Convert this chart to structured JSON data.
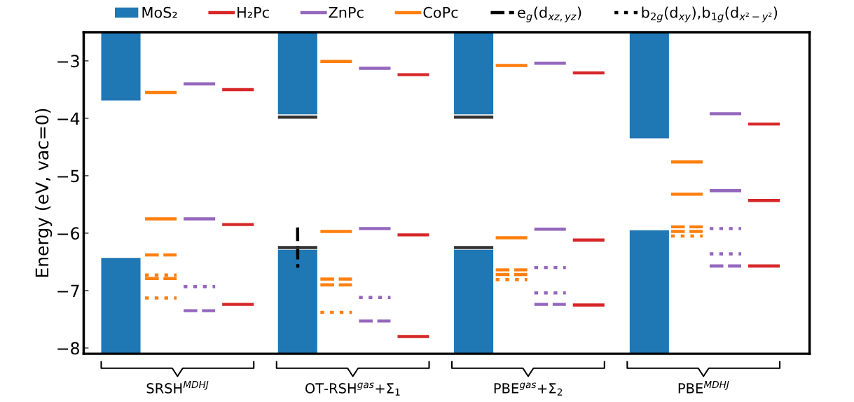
{
  "chart_data": {
    "type": "line",
    "ylabel": "Energy (eV, vac=0)",
    "ylim": [
      -8.1,
      -2.5
    ],
    "yticks": [
      {
        "value": -3,
        "label": "−3"
      },
      {
        "value": -4,
        "label": "−4"
      },
      {
        "value": -5,
        "label": "−5"
      },
      {
        "value": -6,
        "label": "−6"
      },
      {
        "value": -7,
        "label": "−7"
      },
      {
        "value": -8,
        "label": "−8"
      }
    ],
    "xlim": [
      -0.1,
      4.04
    ],
    "xticks": [
      {
        "value": 0.435,
        "label": "SRSH$^{MDHJ}$"
      },
      {
        "value": 1.435,
        "label": "OT-RSH$^{gas}$+Σ$_{1}$"
      },
      {
        "value": 2.435,
        "label": "PBE$^{gas}$+Σ$_{2}$"
      },
      {
        "value": 3.435,
        "label": "PBE$^{MDHJ}$"
      }
    ],
    "legend": "top",
    "grid": false,
    "series": [
      {
        "type": "bar",
        "name": "MoS₂",
        "color": "#1f77b4",
        "x": [
          0.112,
          1.12,
          2.124,
          3.126
        ],
        "base": [
          -8.1,
          -8.1,
          -8.1,
          -8.1
        ],
        "values": [
          1.67,
          1.81,
          1.81,
          2.15
        ]
      },
      {
        "type": "bar",
        "color": "#1f77b4",
        "x": [
          0.112,
          1.12,
          2.124,
          3.126
        ],
        "base": [
          -3.69,
          -3.93,
          -3.93,
          -4.35
        ],
        "values": [
          1.19,
          1.43,
          1.43,
          1.85
        ]
      },
      {
        "name": "H₂Pc",
        "color": "#d62728",
        "line_style": "solid",
        "x": [
          0.69,
          0.87,
          0.95,
          1.69,
          1.87,
          1.95,
          2.69,
          2.87,
          2.95,
          3.69,
          3.87
        ],
        "values": [
          -3.5,
          -3.5,
          null,
          -3.24,
          -3.24,
          null,
          -3.21,
          -3.21,
          null,
          -4.1,
          -4.1
        ]
      },
      {
        "name": "ZnPc",
        "color": "#9467bd",
        "line_style": "solid",
        "x": [
          0.47,
          0.65,
          0.95,
          1.47,
          1.65,
          1.95,
          2.47,
          2.65,
          2.95,
          3.47,
          3.65
        ],
        "values": [
          -3.4,
          -3.4,
          null,
          -3.13,
          -3.13,
          null,
          -3.04,
          -3.04,
          null,
          -3.92,
          -3.92
        ]
      },
      {
        "name": "CoPc",
        "color": "#ff7f0e",
        "line_style": "solid",
        "x": [
          0.25,
          0.43,
          0.95,
          1.25,
          1.43,
          1.95,
          2.25,
          2.43,
          2.95,
          3.25,
          3.43
        ],
        "values": [
          -3.55,
          -3.55,
          null,
          -3.01,
          -3.01,
          null,
          -3.08,
          -3.08,
          null,
          -4.76,
          -4.76
        ]
      },
      {
        "name": "e$_{g}$(d$_{xz,yz}$)",
        "color": "#000000",
        "line_style": "dashed",
        "x": [
          1.12,
          1.121
        ],
        "values": [
          -5.9,
          -6.6
        ]
      },
      {
        "name": "b$_{2g}$(d$_{xy}$),b$_{1g}$(d$_{x²−y²}$)",
        "color": "#000000",
        "line_style": "dotted"
      },
      {
        "color": "#d62728",
        "line_style": "solid",
        "x": [
          0.69,
          0.87,
          0.95,
          1.69,
          1.87,
          1.95,
          2.69,
          2.87,
          2.95,
          3.69,
          3.87
        ],
        "values": [
          -5.85,
          -5.85,
          null,
          -6.03,
          -6.03,
          null,
          -6.12,
          -6.12,
          null,
          -5.43,
          -5.43
        ]
      },
      {
        "color": "#d62728",
        "line_style": "solid",
        "x": [
          0.69,
          0.87,
          0.95,
          1.69,
          1.87,
          1.95,
          2.69,
          2.87,
          2.95,
          3.69,
          3.87
        ],
        "values": [
          -7.24,
          -7.24,
          null,
          -7.8,
          -7.8,
          null,
          -7.25,
          -7.25,
          null,
          -6.57,
          -6.57
        ]
      },
      {
        "color": "#9467bd",
        "line_style": "solid",
        "x": [
          0.47,
          0.65,
          0.95,
          1.47,
          1.65,
          1.95,
          2.47,
          2.65,
          2.95,
          3.47,
          3.65
        ],
        "values": [
          -5.75,
          -5.75,
          null,
          -5.92,
          -5.92,
          null,
          -5.93,
          -5.93,
          null,
          -5.26,
          -5.26
        ]
      },
      {
        "color": "#ff7f0e",
        "line_style": "solid",
        "x": [
          0.25,
          0.43,
          0.95,
          1.25,
          1.43,
          1.95,
          2.25,
          2.43,
          2.95,
          3.25,
          3.43
        ],
        "values": [
          -5.75,
          -5.75,
          null,
          -5.97,
          -5.97,
          null,
          -6.08,
          -6.08,
          null,
          -5.32,
          -5.32
        ]
      },
      {
        "color": "#ff7f0e",
        "line_style": "dashed",
        "x": [
          0.25,
          0.43,
          0.95,
          1.25,
          1.43,
          1.95,
          2.25,
          2.43,
          2.95,
          3.25,
          3.43
        ],
        "values": [
          -6.38,
          -6.38,
          null,
          -6.8,
          -6.8,
          null,
          -6.64,
          -6.64,
          null,
          -5.89,
          -5.89
        ]
      },
      {
        "color": "#ff7f0e",
        "line_style": "dashed",
        "x": [
          0.25,
          0.43,
          0.95,
          1.25,
          1.43,
          1.95,
          2.25,
          2.43,
          2.95,
          3.25,
          3.43
        ],
        "values": [
          -6.79,
          -6.79,
          null,
          -6.9,
          -6.9,
          null,
          -6.72,
          -6.72,
          null,
          -5.97,
          -5.97
        ]
      },
      {
        "color": "#ff7f0e",
        "line_style": "dotted",
        "x": [
          0.25,
          0.43,
          0.95,
          1.25,
          1.43,
          1.95,
          2.25,
          2.43,
          2.95,
          3.25,
          3.43
        ],
        "values": [
          -6.73,
          -6.73,
          null,
          -7.38,
          -7.38,
          null,
          -6.81,
          -6.81,
          null,
          -6.05,
          -6.05
        ]
      },
      {
        "color": "#ff7f0e",
        "line_style": "dotted",
        "x": [
          0.25,
          0.43
        ],
        "values": [
          -7.13,
          -7.13
        ]
      },
      {
        "color": "#9467bd",
        "line_style": "dashed",
        "x": [
          0.47,
          0.65,
          0.95,
          1.47,
          1.65,
          1.95,
          2.47,
          2.65,
          2.95,
          3.47,
          3.65
        ],
        "values": [
          -7.35,
          -7.35,
          null,
          -7.53,
          -7.53,
          null,
          -7.24,
          -7.24,
          null,
          -6.57,
          -6.57
        ]
      },
      {
        "color": "#9467bd",
        "line_style": "dotted",
        "x": [
          0.47,
          0.65,
          0.95,
          1.47,
          1.65,
          1.95,
          2.47,
          2.65,
          2.95,
          3.47,
          3.65
        ],
        "values": [
          -6.93,
          -6.93,
          null,
          -7.12,
          -7.12,
          null,
          -6.6,
          -6.6,
          null,
          -5.92,
          -5.92
        ]
      },
      {
        "color": "#9467bd",
        "line_style": "dotted",
        "x": [
          2.47,
          2.65,
          2.95,
          3.47,
          3.65
        ],
        "values": [
          -7.04,
          -7.04,
          null,
          -6.36,
          -6.36
        ]
      },
      {
        "color": "#333333",
        "line_style": "solid",
        "x": [
          1.008,
          1.232,
          1.6,
          2.012,
          2.236
        ],
        "values": [
          -3.98,
          -3.98,
          null,
          -3.98,
          -3.98
        ]
      },
      {
        "color": "#333333",
        "line_style": "solid",
        "x": [
          1.008,
          1.232,
          1.6,
          2.012,
          2.236
        ],
        "values": [
          -6.25,
          -6.25,
          null,
          -6.25,
          -6.25
        ]
      }
    ]
  }
}
